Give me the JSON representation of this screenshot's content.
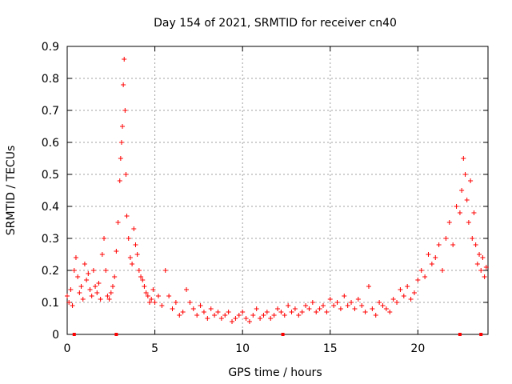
{
  "chart_data": {
    "type": "scatter",
    "title": "Day 154 of 2021, SRMTID for receiver cn40",
    "xlabel": "GPS time / hours",
    "ylabel": "SRMTID / TECUs",
    "xlim": [
      0,
      24
    ],
    "ylim": [
      0,
      0.9
    ],
    "x_ticks": [
      0,
      5,
      10,
      15,
      20
    ],
    "x_tick_labels": [
      "0",
      "5",
      "10",
      "15",
      "20"
    ],
    "y_ticks": [
      0,
      0.1,
      0.2,
      0.3,
      0.4,
      0.5,
      0.6,
      0.7,
      0.8,
      0.9
    ],
    "y_tick_labels": [
      "0",
      "0.1",
      "0.2",
      "0.3",
      "0.4",
      "0.5",
      "0.6",
      "0.7",
      "0.8",
      "0.9"
    ],
    "grid": true,
    "marker": "plus",
    "color": "#ff0000",
    "series": [
      {
        "name": "SRMTID",
        "x": [
          0.0,
          0.1,
          0.2,
          0.3,
          0.4,
          0.5,
          0.6,
          0.7,
          0.8,
          0.9,
          1.0,
          1.1,
          1.2,
          1.3,
          1.4,
          1.5,
          1.6,
          1.7,
          1.8,
          1.9,
          2.0,
          2.1,
          2.2,
          2.3,
          2.4,
          2.5,
          2.6,
          2.7,
          2.8,
          2.9,
          3.0,
          3.05,
          3.1,
          3.15,
          3.2,
          3.25,
          3.3,
          3.35,
          3.4,
          3.5,
          3.6,
          3.7,
          3.8,
          3.9,
          4.0,
          4.1,
          4.2,
          4.3,
          4.4,
          4.5,
          4.6,
          4.7,
          4.8,
          4.9,
          5.0,
          5.2,
          5.4,
          5.6,
          5.8,
          6.0,
          6.2,
          6.4,
          6.6,
          6.8,
          7.0,
          7.2,
          7.4,
          7.6,
          7.8,
          8.0,
          8.2,
          8.4,
          8.6,
          8.8,
          9.0,
          9.2,
          9.4,
          9.6,
          9.8,
          10.0,
          10.2,
          10.4,
          10.6,
          10.8,
          11.0,
          11.2,
          11.4,
          11.6,
          11.8,
          12.0,
          12.2,
          12.4,
          12.6,
          12.8,
          13.0,
          13.2,
          13.4,
          13.6,
          13.8,
          14.0,
          14.2,
          14.4,
          14.6,
          14.8,
          15.0,
          15.2,
          15.4,
          15.6,
          15.8,
          16.0,
          16.2,
          16.4,
          16.6,
          16.8,
          17.0,
          17.2,
          17.4,
          17.6,
          17.8,
          18.0,
          18.2,
          18.4,
          18.6,
          18.8,
          19.0,
          19.2,
          19.4,
          19.6,
          19.8,
          20.0,
          20.2,
          20.4,
          20.6,
          20.8,
          21.0,
          21.2,
          21.4,
          21.6,
          21.8,
          22.0,
          22.2,
          22.4,
          22.5,
          22.6,
          22.7,
          22.8,
          22.9,
          23.0,
          23.1,
          23.2,
          23.3,
          23.4,
          23.5,
          23.6,
          23.7,
          23.8,
          23.9
        ],
        "y": [
          0.12,
          0.1,
          0.14,
          0.09,
          0.2,
          0.24,
          0.18,
          0.13,
          0.15,
          0.11,
          0.22,
          0.17,
          0.19,
          0.14,
          0.12,
          0.2,
          0.15,
          0.13,
          0.16,
          0.11,
          0.25,
          0.3,
          0.2,
          0.12,
          0.11,
          0.13,
          0.15,
          0.18,
          0.26,
          0.35,
          0.48,
          0.55,
          0.6,
          0.65,
          0.78,
          0.86,
          0.7,
          0.5,
          0.37,
          0.3,
          0.24,
          0.22,
          0.33,
          0.28,
          0.25,
          0.2,
          0.18,
          0.17,
          0.15,
          0.13,
          0.12,
          0.1,
          0.11,
          0.14,
          0.1,
          0.12,
          0.09,
          0.2,
          0.12,
          0.08,
          0.1,
          0.06,
          0.07,
          0.14,
          0.1,
          0.08,
          0.06,
          0.09,
          0.07,
          0.05,
          0.08,
          0.06,
          0.07,
          0.05,
          0.06,
          0.07,
          0.04,
          0.05,
          0.06,
          0.07,
          0.05,
          0.04,
          0.06,
          0.08,
          0.05,
          0.06,
          0.07,
          0.05,
          0.06,
          0.08,
          0.07,
          0.06,
          0.09,
          0.07,
          0.08,
          0.06,
          0.07,
          0.09,
          0.08,
          0.1,
          0.07,
          0.08,
          0.09,
          0.07,
          0.11,
          0.09,
          0.1,
          0.08,
          0.12,
          0.09,
          0.1,
          0.08,
          0.11,
          0.09,
          0.07,
          0.15,
          0.08,
          0.06,
          0.1,
          0.09,
          0.08,
          0.07,
          0.11,
          0.1,
          0.14,
          0.12,
          0.15,
          0.11,
          0.13,
          0.17,
          0.2,
          0.18,
          0.25,
          0.22,
          0.24,
          0.28,
          0.2,
          0.3,
          0.35,
          0.28,
          0.4,
          0.38,
          0.45,
          0.55,
          0.5,
          0.42,
          0.35,
          0.48,
          0.3,
          0.38,
          0.28,
          0.22,
          0.25,
          0.2,
          0.24,
          0.18,
          0.21
        ]
      }
    ],
    "baseline_markers_x": [
      0.4,
      2.8,
      12.3,
      22.4,
      23.6
    ]
  }
}
